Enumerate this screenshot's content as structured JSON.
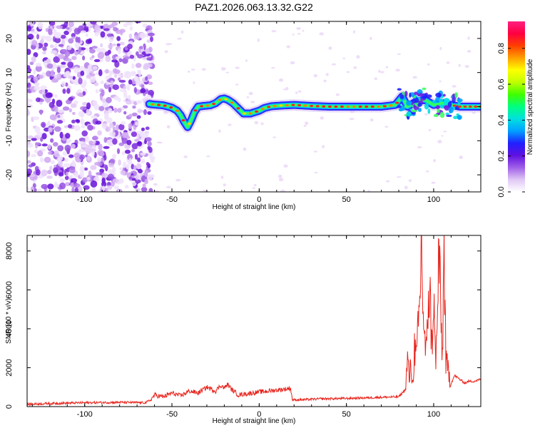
{
  "chart_data": [
    {
      "type": "heatmap",
      "title": "PAZ1.2026.063.13.32.G22",
      "xlabel": "Height of straight line (km)",
      "ylabel": "Frequency (Hz)",
      "xlim": [
        -133,
        127
      ],
      "ylim": [
        -25,
        25
      ],
      "xticks": [
        -100,
        -50,
        0,
        50,
        100
      ],
      "yticks": [
        -20,
        -10,
        0,
        10,
        20
      ],
      "colorbar": {
        "label": "Normalized spectral amplitude",
        "range": [
          0,
          0.95
        ],
        "ticks": [
          0.0,
          0.2,
          0.4,
          0.6,
          0.8
        ],
        "colors": [
          "#ffffff",
          "#e0c8f5",
          "#a060e8",
          "#6010e0",
          "#2020ff",
          "#00a0ff",
          "#00e0e0",
          "#00ff80",
          "#40ff00",
          "#c0ff00",
          "#ffff00",
          "#ffa000",
          "#ff4000",
          "#ff0040",
          "#ff2080"
        ]
      },
      "noise_region": {
        "x_from": -133,
        "x_to": -63
      },
      "ridge": {
        "x": [
          -63,
          -60,
          -55,
          -50,
          -47,
          -45,
          -43,
          -41,
          -39,
          -37,
          -35,
          -32,
          -28,
          -25,
          -22,
          -20,
          -18,
          -15,
          -12,
          -9,
          -5,
          0,
          3,
          7,
          12,
          20,
          30,
          40,
          50,
          60,
          70,
          78,
          82,
          85,
          90,
          95,
          100,
          105,
          110,
          115,
          120,
          127
        ],
        "y": [
          0.8,
          0.6,
          0.4,
          -0.3,
          -1.2,
          -2.5,
          -4.5,
          -6.0,
          -4.0,
          -1.5,
          0.0,
          0.2,
          0.4,
          1.0,
          2.2,
          2.4,
          2.0,
          1.0,
          -0.5,
          -2.0,
          -2.0,
          -1.2,
          -0.4,
          0.1,
          0.3,
          0.5,
          0.2,
          0.0,
          0.0,
          0.0,
          0.0,
          0.5,
          3.0,
          0.0,
          1.5,
          2.0,
          0.5,
          1.0,
          0.5,
          0.0,
          0.0,
          0.0
        ]
      }
    },
    {
      "type": "line",
      "xlabel": "Height of straight line (km)",
      "ylabel": "SNR (10 * v/v)",
      "xlim": [
        -133,
        127
      ],
      "ylim": [
        0,
        8800
      ],
      "xticks": [
        -100,
        -50,
        0,
        50,
        100
      ],
      "yticks": [
        0,
        2000,
        4000,
        6000,
        8000
      ],
      "color": "#e8241c",
      "series": [
        {
          "x": [
            -133,
            -120,
            -100,
            -80,
            -65,
            -62,
            -60,
            -55,
            -50,
            -45,
            -40,
            -35,
            -30,
            -25,
            -22,
            -20,
            -18,
            -16,
            -12,
            -8,
            -4,
            0,
            5,
            10,
            15,
            18,
            19,
            25,
            35,
            50,
            60,
            70,
            80,
            84,
            85,
            86,
            87,
            88,
            89,
            90,
            91,
            92,
            93,
            94,
            95,
            96,
            97,
            98,
            99,
            100,
            101,
            102,
            103,
            104,
            105,
            106,
            107,
            108,
            110,
            112,
            115,
            118,
            120,
            123,
            127
          ],
          "y": [
            120,
            160,
            200,
            220,
            200,
            350,
            600,
            500,
            700,
            550,
            800,
            700,
            1000,
            800,
            1100,
            950,
            1150,
            900,
            600,
            650,
            700,
            750,
            800,
            850,
            900,
            950,
            350,
            350,
            400,
            420,
            450,
            480,
            500,
            900,
            2500,
            1400,
            2100,
            1100,
            3100,
            2400,
            3700,
            5200,
            8700,
            4800,
            3200,
            2700,
            6100,
            5300,
            3100,
            5600,
            2400,
            3600,
            8700,
            4700,
            2600,
            8300,
            2200,
            2000,
            1200,
            1600,
            1400,
            1200,
            1300,
            1300,
            1400
          ]
        }
      ]
    }
  ]
}
